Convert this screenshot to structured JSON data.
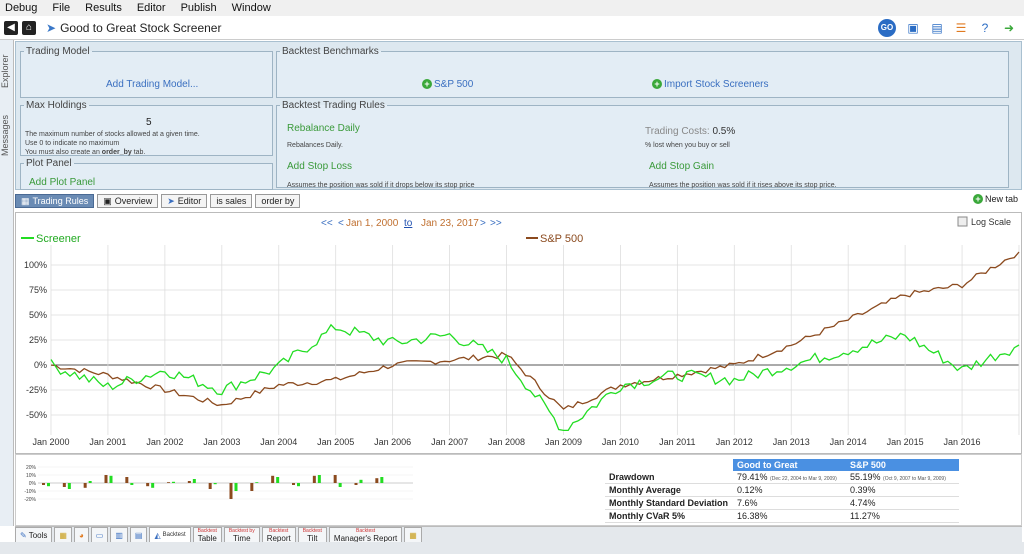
{
  "menu": [
    "Debug",
    "File",
    "Results",
    "Editor",
    "Publish",
    "Window"
  ],
  "toolbar": {
    "title": "Good to Great Stock Screener",
    "go_label": "GO"
  },
  "side_tabs": {
    "explorer": "Explorer",
    "messages": "Messages"
  },
  "trading_model": {
    "legend": "Trading Model",
    "add": "Add Trading Model..."
  },
  "backtest_benchmarks": {
    "legend": "Backtest Benchmarks",
    "sp500": "S&P 500",
    "import": "Import Stock Screeners"
  },
  "max_holdings": {
    "legend": "Max Holdings",
    "value": "5",
    "desc1": "The maximum number of stocks allowed at a given time.",
    "desc2": "Use 0 to indicate no maximum",
    "desc3a": "You must also create an ",
    "desc3b": "order_by",
    "desc3c": " tab."
  },
  "trading_rules": {
    "legend": "Backtest Trading Rules",
    "rebalance": "Rebalance Daily",
    "rebalance_desc": "Rebalances Daily.",
    "costs_label": "Trading Costs:",
    "costs_value": "0.5%",
    "costs_desc": "% lost when you buy or sell",
    "stop_loss": "Add Stop Loss",
    "stop_loss_desc": "Assumes the position was sold if it drops below its stop price",
    "stop_gain": "Add Stop Gain",
    "stop_gain_desc": "Assumes the position was sold if it rises above its stop price."
  },
  "plot_panel": {
    "legend": "Plot Panel",
    "add": "Add Plot Panel"
  },
  "tabs": [
    "Trading Rules",
    "Overview",
    "Editor",
    "is sales",
    "order by"
  ],
  "new_tab": "New tab",
  "date_range": {
    "prev2": "<<",
    "prev": "<",
    "start": "Jan 1, 2000",
    "to": "to",
    "end": "Jan 23, 2017",
    "next": ">",
    "next2": ">>"
  },
  "log_scale": "Log Scale",
  "chart_data": {
    "type": "line",
    "x": [
      "Jan 2000",
      "Jan 2001",
      "Jan 2002",
      "Jan 2003",
      "Jan 2004",
      "Jan 2005",
      "Jan 2006",
      "Jan 2007",
      "Jan 2008",
      "Jan 2009",
      "Jan 2010",
      "Jan 2011",
      "Jan 2012",
      "Jan 2013",
      "Jan 2014",
      "Jan 2015",
      "Jan 2016",
      "Jan 2017"
    ],
    "series": [
      {
        "name": "Screener",
        "color": "#22dd22",
        "values": [
          0,
          -22,
          -5,
          -25,
          -2,
          38,
          22,
          30,
          5,
          -65,
          -20,
          -10,
          -15,
          0,
          15,
          30,
          -5,
          20
        ]
      },
      {
        "name": "S&P 500",
        "color": "#8b4a1e",
        "values": [
          0,
          -10,
          -25,
          -40,
          -20,
          -15,
          0,
          5,
          10,
          -45,
          -20,
          -10,
          0,
          20,
          45,
          70,
          80,
          113
        ]
      }
    ],
    "yticks": [
      "100%",
      "75%",
      "50%",
      "25%",
      "0%",
      "-25%",
      "-50%"
    ],
    "ylim": [
      -70,
      120
    ]
  },
  "mini_chart": {
    "yticks": [
      "20%",
      "10%",
      "0%",
      "-10%",
      "-20%"
    ],
    "green": [
      -8,
      -15,
      5,
      18,
      -5,
      -12,
      3,
      10,
      -3,
      -20,
      2,
      15,
      -8,
      20,
      -10,
      8,
      15,
      0
    ],
    "brown": [
      -5,
      -10,
      -12,
      20,
      15,
      -8,
      2,
      5,
      -15,
      -40,
      -20,
      18,
      -5,
      18,
      20,
      -5,
      12,
      0
    ]
  },
  "stats": {
    "headers": [
      "",
      "Good to Great",
      "S&P 500"
    ],
    "rows": [
      {
        "label": "Drawdown",
        "a": "79.41%",
        "a_note": "(Dec 22, 2004 to Mar 9, 2009)",
        "b": "55.19%",
        "b_note": "(Oct 9, 2007 to Mar 9, 2009)"
      },
      {
        "label": "Monthly Average",
        "a": "0.12%",
        "a_note": "",
        "b": "0.39%",
        "b_note": ""
      },
      {
        "label": "Monthly Standard Deviation",
        "a": "7.6%",
        "a_note": "",
        "b": "4.74%",
        "b_note": ""
      },
      {
        "label": "Monthly CVaR 5%",
        "a": "16.38%",
        "a_note": "",
        "b": "11.27%",
        "b_note": ""
      }
    ]
  },
  "bottom_tabs": {
    "tools": "Tools",
    "backtest": "Backtest",
    "table": "Table",
    "time": "Time",
    "report": "Report",
    "tilt": "Tilt",
    "manager": "Manager's Report",
    "sup_backtest": "Backtest",
    "sup_backtest_by": "Backtest by"
  }
}
